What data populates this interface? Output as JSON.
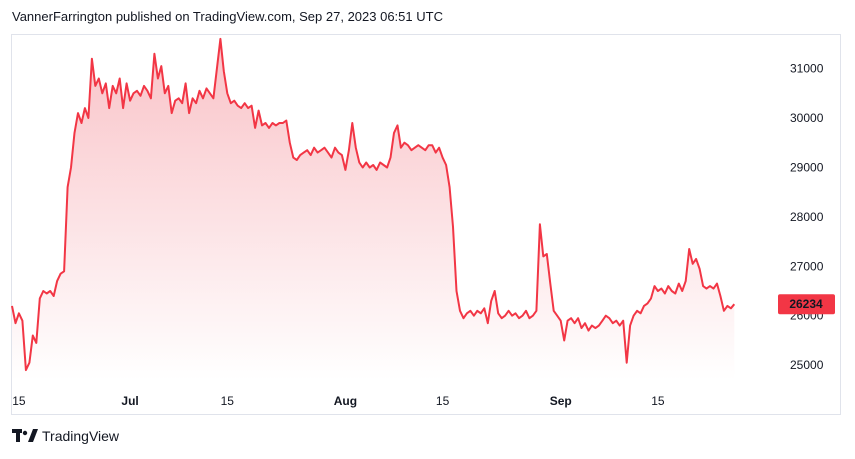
{
  "header": {
    "publisher_line": "VannerFarrington published on TradingView.com, Sep 27, 2023 06:51 UTC"
  },
  "footer": {
    "brand": "TradingView",
    "logo_icon": "tradingview-logo-icon"
  },
  "colors": {
    "line": "#f23645",
    "fill_top": "#f9c2c7",
    "fill_bottom": "#ffffff",
    "price_label_bg": "#f23645",
    "price_label_text": "#ffffff",
    "border": "#e0e3eb"
  },
  "chart_data": {
    "type": "area",
    "title": "",
    "xlabel": "",
    "ylabel": "",
    "ylim": [
      24700,
      31700
    ],
    "xlim": [
      0,
      110
    ],
    "y_ticks": [
      "25000",
      "26000",
      "27000",
      "28000",
      "29000",
      "30000",
      "31000"
    ],
    "x_ticks": [
      {
        "label": "15",
        "x": 1,
        "bold": false
      },
      {
        "label": "Jul",
        "x": 17,
        "bold": true
      },
      {
        "label": "15",
        "x": 31,
        "bold": false
      },
      {
        "label": "Aug",
        "x": 48,
        "bold": true
      },
      {
        "label": "15",
        "x": 62,
        "bold": false
      },
      {
        "label": "Sep",
        "x": 79,
        "bold": true
      },
      {
        "label": "15",
        "x": 93,
        "bold": false
      }
    ],
    "last_price": "26234",
    "series": [
      {
        "points": [
          [
            0,
            26200
          ],
          [
            0.5,
            25850
          ],
          [
            1,
            26050
          ],
          [
            1.5,
            25900
          ],
          [
            2,
            24900
          ],
          [
            2.5,
            25050
          ],
          [
            3,
            25600
          ],
          [
            3.5,
            25450
          ],
          [
            4,
            26350
          ],
          [
            4.5,
            26500
          ],
          [
            5,
            26450
          ],
          [
            5.5,
            26500
          ],
          [
            6,
            26400
          ],
          [
            6.5,
            26700
          ],
          [
            7,
            26850
          ],
          [
            7.5,
            26900
          ],
          [
            8,
            28600
          ],
          [
            8.5,
            29000
          ],
          [
            9,
            29700
          ],
          [
            9.5,
            30100
          ],
          [
            10,
            29900
          ],
          [
            10.5,
            30200
          ],
          [
            11,
            30000
          ],
          [
            11.5,
            31200
          ],
          [
            12,
            30650
          ],
          [
            12.5,
            30800
          ],
          [
            13,
            30500
          ],
          [
            13.5,
            30700
          ],
          [
            14,
            30200
          ],
          [
            14.5,
            30650
          ],
          [
            15,
            30500
          ],
          [
            15.5,
            30800
          ],
          [
            16,
            30200
          ],
          [
            16.5,
            30700
          ],
          [
            17,
            30350
          ],
          [
            17.5,
            30500
          ],
          [
            18,
            30550
          ],
          [
            18.5,
            30450
          ],
          [
            19,
            30650
          ],
          [
            19.5,
            30550
          ],
          [
            20,
            30400
          ],
          [
            20.5,
            31300
          ],
          [
            21,
            30800
          ],
          [
            21.5,
            31050
          ],
          [
            22,
            30500
          ],
          [
            22.5,
            30650
          ],
          [
            23,
            30100
          ],
          [
            23.5,
            30350
          ],
          [
            24,
            30400
          ],
          [
            24.5,
            30300
          ],
          [
            25,
            30700
          ],
          [
            25.5,
            30100
          ],
          [
            26,
            30400
          ],
          [
            26.5,
            30300
          ],
          [
            27,
            30550
          ],
          [
            27.5,
            30400
          ],
          [
            28,
            30600
          ],
          [
            28.5,
            30500
          ],
          [
            29,
            30400
          ],
          [
            29.5,
            31000
          ],
          [
            30,
            31600
          ],
          [
            30.5,
            30950
          ],
          [
            31,
            30500
          ],
          [
            31.5,
            30300
          ],
          [
            32,
            30350
          ],
          [
            32.5,
            30250
          ],
          [
            33,
            30200
          ],
          [
            33.5,
            30300
          ],
          [
            34,
            30200
          ],
          [
            34.5,
            30250
          ],
          [
            35,
            29800
          ],
          [
            35.5,
            30150
          ],
          [
            36,
            29850
          ],
          [
            36.5,
            29900
          ],
          [
            37,
            29800
          ],
          [
            37.5,
            29900
          ],
          [
            38,
            29850
          ],
          [
            38.5,
            29900
          ],
          [
            39,
            29900
          ],
          [
            39.5,
            29950
          ],
          [
            40,
            29500
          ],
          [
            40.5,
            29200
          ],
          [
            41,
            29150
          ],
          [
            41.5,
            29250
          ],
          [
            42,
            29300
          ],
          [
            42.5,
            29350
          ],
          [
            43,
            29250
          ],
          [
            43.5,
            29400
          ],
          [
            44,
            29300
          ],
          [
            44.5,
            29350
          ],
          [
            45,
            29400
          ],
          [
            45.5,
            29300
          ],
          [
            46,
            29200
          ],
          [
            46.5,
            29400
          ],
          [
            47,
            29300
          ],
          [
            47.5,
            29250
          ],
          [
            48,
            28950
          ],
          [
            48.5,
            29350
          ],
          [
            49,
            29900
          ],
          [
            49.5,
            29400
          ],
          [
            50,
            29100
          ],
          [
            50.5,
            29000
          ],
          [
            51,
            29100
          ],
          [
            51.5,
            29000
          ],
          [
            52,
            29050
          ],
          [
            52.5,
            28950
          ],
          [
            53,
            29100
          ],
          [
            53.5,
            29050
          ],
          [
            54,
            29000
          ],
          [
            54.5,
            29200
          ],
          [
            55,
            29700
          ],
          [
            55.5,
            29850
          ],
          [
            56,
            29400
          ],
          [
            56.5,
            29500
          ],
          [
            57,
            29450
          ],
          [
            57.5,
            29350
          ],
          [
            58,
            29400
          ],
          [
            58.5,
            29450
          ],
          [
            59,
            29400
          ],
          [
            59.5,
            29350
          ],
          [
            60,
            29450
          ],
          [
            60.5,
            29450
          ],
          [
            61,
            29300
          ],
          [
            61.5,
            29400
          ],
          [
            62,
            29200
          ],
          [
            62.5,
            29050
          ],
          [
            63,
            28600
          ],
          [
            63.5,
            27800
          ],
          [
            64,
            26500
          ],
          [
            64.5,
            26100
          ],
          [
            65,
            25950
          ],
          [
            65.5,
            26050
          ],
          [
            66,
            26100
          ],
          [
            66.5,
            26000
          ],
          [
            67,
            26100
          ],
          [
            67.5,
            26050
          ],
          [
            68,
            26150
          ],
          [
            68.5,
            25850
          ],
          [
            69,
            26300
          ],
          [
            69.5,
            26500
          ],
          [
            70,
            26050
          ],
          [
            70.5,
            25950
          ],
          [
            71,
            26000
          ],
          [
            71.5,
            26100
          ],
          [
            72,
            26000
          ],
          [
            72.5,
            26050
          ],
          [
            73,
            25950
          ],
          [
            73.5,
            26000
          ],
          [
            74,
            26100
          ],
          [
            74.5,
            25950
          ],
          [
            75,
            26000
          ],
          [
            75.5,
            26100
          ],
          [
            76,
            27850
          ],
          [
            76.5,
            27200
          ],
          [
            77,
            27250
          ],
          [
            77.5,
            26650
          ],
          [
            78,
            26100
          ],
          [
            78.5,
            26000
          ],
          [
            79,
            25900
          ],
          [
            79.5,
            25500
          ],
          [
            80,
            25900
          ],
          [
            80.5,
            25950
          ],
          [
            81,
            25850
          ],
          [
            81.5,
            25950
          ],
          [
            82,
            25750
          ],
          [
            82.5,
            25850
          ],
          [
            83,
            25700
          ],
          [
            83.5,
            25800
          ],
          [
            84,
            25750
          ],
          [
            84.5,
            25800
          ],
          [
            85,
            25900
          ],
          [
            85.5,
            26000
          ],
          [
            86,
            25950
          ],
          [
            86.5,
            25850
          ],
          [
            87,
            25900
          ],
          [
            87.5,
            25800
          ],
          [
            88,
            25900
          ],
          [
            88.5,
            25050
          ],
          [
            89,
            25800
          ],
          [
            89.5,
            26000
          ],
          [
            90,
            26100
          ],
          [
            90.5,
            26050
          ],
          [
            91,
            26200
          ],
          [
            91.5,
            26250
          ],
          [
            92,
            26350
          ],
          [
            92.5,
            26600
          ],
          [
            93,
            26500
          ],
          [
            93.5,
            26550
          ],
          [
            94,
            26450
          ],
          [
            94.5,
            26600
          ],
          [
            95,
            26500
          ],
          [
            95.5,
            26450
          ],
          [
            96,
            26650
          ],
          [
            96.5,
            26500
          ],
          [
            97,
            26700
          ],
          [
            97.5,
            27350
          ],
          [
            98,
            27050
          ],
          [
            98.5,
            27150
          ],
          [
            99,
            26950
          ],
          [
            99.5,
            26600
          ],
          [
            100,
            26550
          ],
          [
            100.5,
            26600
          ],
          [
            101,
            26550
          ],
          [
            101.5,
            26650
          ],
          [
            102,
            26400
          ],
          [
            102.5,
            26100
          ],
          [
            103,
            26200
          ],
          [
            103.5,
            26150
          ],
          [
            104,
            26234
          ]
        ]
      }
    ]
  }
}
